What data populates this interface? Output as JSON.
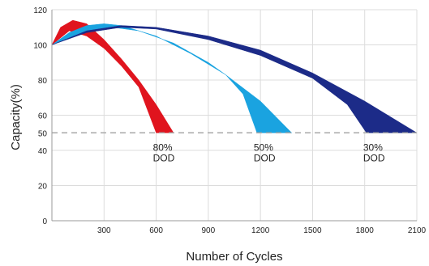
{
  "chart_data": {
    "type": "area",
    "xlabel": "Number of Cycles",
    "ylabel": "Capacity(%)",
    "xlim": [
      0,
      2100
    ],
    "ylim": [
      0,
      120
    ],
    "x_ticks": [
      300,
      600,
      900,
      1200,
      1500,
      1800,
      2100
    ],
    "y_ticks": [
      0,
      20,
      40,
      50,
      60,
      80,
      100,
      120
    ],
    "grid": true,
    "reference_line": {
      "y": 50,
      "style": "dashed"
    },
    "series": [
      {
        "name": "80% DOD",
        "label_lines": [
          "80%",
          "DOD"
        ],
        "color": "#e0141e",
        "upper": [
          [
            0,
            100
          ],
          [
            50,
            110
          ],
          [
            120,
            114
          ],
          [
            200,
            112
          ],
          [
            300,
            103
          ],
          [
            400,
            92
          ],
          [
            500,
            80
          ],
          [
            600,
            66
          ],
          [
            700,
            50
          ]
        ],
        "lower": [
          [
            0,
            100
          ],
          [
            100,
            108
          ],
          [
            200,
            105
          ],
          [
            300,
            98
          ],
          [
            400,
            88
          ],
          [
            500,
            76
          ],
          [
            600,
            50
          ]
        ]
      },
      {
        "name": "50% DOD",
        "label_lines": [
          "50%",
          "DOD"
        ],
        "color": "#1aa3e0",
        "upper": [
          [
            0,
            100
          ],
          [
            100,
            107
          ],
          [
            200,
            111
          ],
          [
            300,
            112
          ],
          [
            400,
            111
          ],
          [
            600,
            105
          ],
          [
            800,
            95
          ],
          [
            1000,
            83
          ],
          [
            1200,
            68
          ],
          [
            1380,
            50
          ]
        ],
        "lower": [
          [
            0,
            100
          ],
          [
            200,
            108
          ],
          [
            350,
            110
          ],
          [
            500,
            108
          ],
          [
            700,
            101
          ],
          [
            900,
            90
          ],
          [
            1000,
            83
          ],
          [
            1100,
            72
          ],
          [
            1180,
            50
          ]
        ]
      },
      {
        "name": "30% DOD",
        "label_lines": [
          "30%",
          "DOD"
        ],
        "color": "#1c2b88",
        "upper": [
          [
            0,
            100
          ],
          [
            200,
            108
          ],
          [
            400,
            111
          ],
          [
            600,
            110
          ],
          [
            900,
            105
          ],
          [
            1200,
            97
          ],
          [
            1500,
            84
          ],
          [
            1800,
            68
          ],
          [
            2100,
            50
          ]
        ],
        "lower": [
          [
            0,
            100
          ],
          [
            200,
            107
          ],
          [
            400,
            110
          ],
          [
            600,
            109
          ],
          [
            900,
            103
          ],
          [
            1200,
            94
          ],
          [
            1500,
            81
          ],
          [
            1700,
            66
          ],
          [
            1810,
            50
          ]
        ]
      }
    ]
  }
}
